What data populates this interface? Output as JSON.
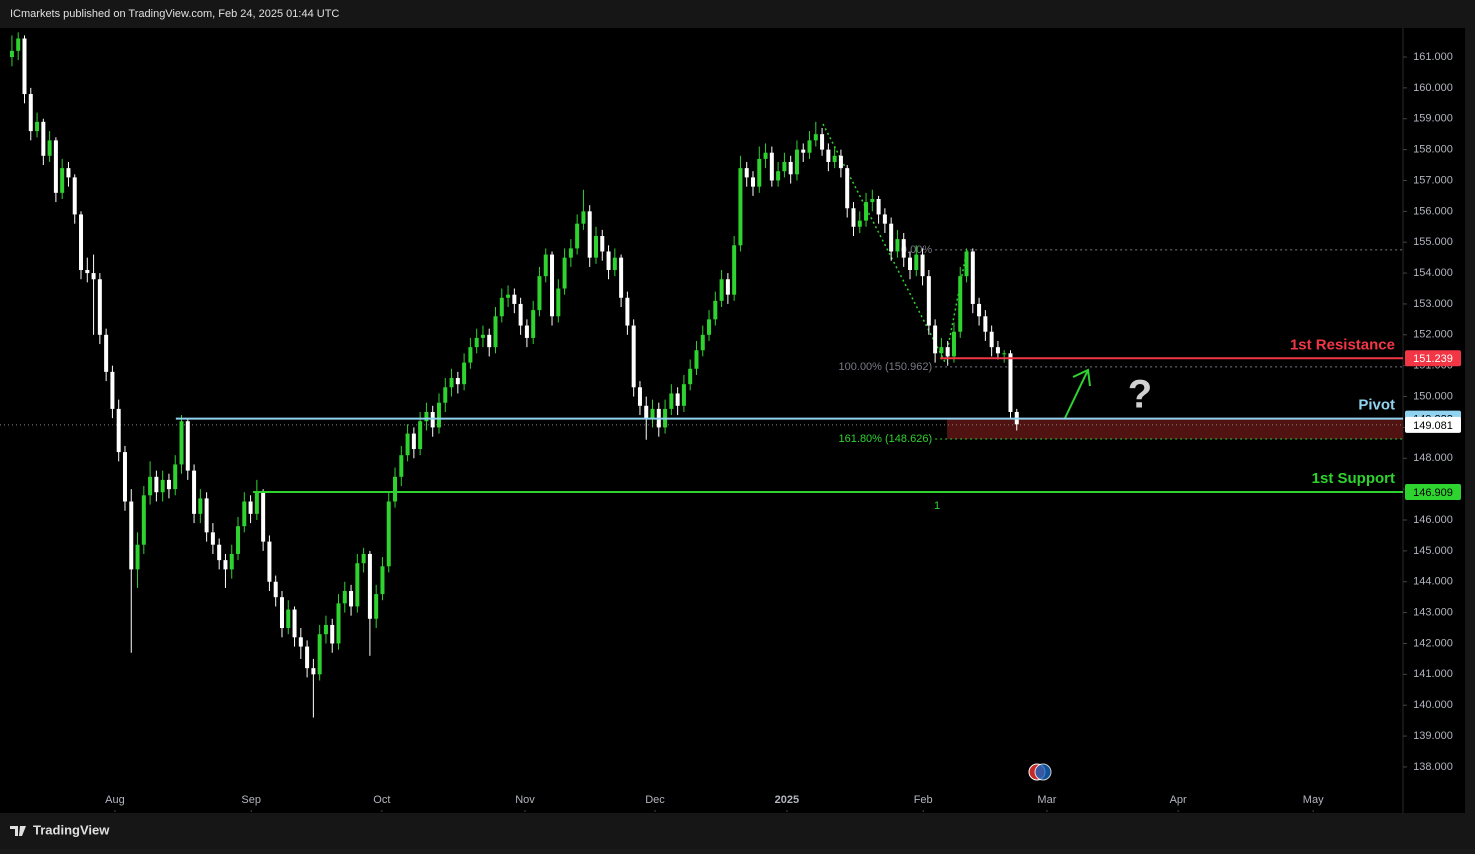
{
  "header": "ICmarkets published on TradingView.com, Feb 24, 2025 01:44 UTC",
  "brand": "TradingView",
  "chart_data": {
    "type": "candlestick",
    "up_color": "#2fd32f",
    "down_color": "#ffffff",
    "ylim": [
      136.54,
      161.94
    ],
    "yticks": [
      {
        "value": 138,
        "label": "138.000"
      },
      {
        "value": 139,
        "label": "139.000"
      },
      {
        "value": 140,
        "label": "140.000"
      },
      {
        "value": 141,
        "label": "141.000"
      },
      {
        "value": 142,
        "label": "142.000"
      },
      {
        "value": 143,
        "label": "143.000"
      },
      {
        "value": 144,
        "label": "144.000"
      },
      {
        "value": 145,
        "label": "145.000"
      },
      {
        "value": 146,
        "label": "146.000"
      },
      {
        "value": 147,
        "label": "147.000"
      },
      {
        "value": 148,
        "label": "148.000"
      },
      {
        "value": 149,
        "label": "149.000"
      },
      {
        "value": 150,
        "label": "150.000"
      },
      {
        "value": 151,
        "label": "151.000"
      },
      {
        "value": 152,
        "label": "152.000"
      },
      {
        "value": 153,
        "label": "153.000"
      },
      {
        "value": 154,
        "label": "154.000"
      },
      {
        "value": 155,
        "label": "155.000"
      },
      {
        "value": 156,
        "label": "156.000"
      },
      {
        "value": 157,
        "label": "157.000"
      },
      {
        "value": 158,
        "label": "158.000"
      },
      {
        "value": 159,
        "label": "159.000"
      },
      {
        "value": 160,
        "label": "160.000"
      },
      {
        "value": 161,
        "label": "161.000"
      }
    ],
    "xlim": [
      -1.9,
      221.5
    ],
    "xticks": [
      {
        "value": 16.4,
        "label": "Aug"
      },
      {
        "value": 38.1,
        "label": "Sep"
      },
      {
        "value": 58.9,
        "label": "Oct"
      },
      {
        "value": 81.7,
        "label": "Nov"
      },
      {
        "value": 102.4,
        "label": "Dec"
      },
      {
        "value": 123.4,
        "label": "2025"
      },
      {
        "value": 145.1,
        "label": "Feb"
      },
      {
        "value": 164.8,
        "label": "Mar"
      },
      {
        "value": 185.7,
        "label": "Apr"
      },
      {
        "value": 207.2,
        "label": "May"
      }
    ],
    "candles": [
      [
        161.0,
        161.7,
        160.7,
        161.2
      ],
      [
        161.2,
        161.8,
        160.9,
        161.6
      ],
      [
        161.6,
        161.7,
        159.5,
        159.8
      ],
      [
        159.8,
        160.0,
        158.3,
        158.6
      ],
      [
        158.6,
        159.2,
        158.4,
        158.9
      ],
      [
        158.9,
        159.0,
        157.5,
        157.8
      ],
      [
        157.8,
        158.6,
        157.6,
        158.3
      ],
      [
        158.3,
        158.4,
        156.3,
        156.6
      ],
      [
        156.6,
        157.7,
        156.4,
        157.4
      ],
      [
        157.4,
        157.6,
        156.8,
        157.1
      ],
      [
        157.1,
        157.2,
        155.6,
        155.9
      ],
      [
        155.9,
        156.0,
        153.8,
        154.1
      ],
      [
        154.1,
        154.5,
        153.7,
        154.0
      ],
      [
        154.0,
        154.6,
        152.0,
        153.8
      ],
      [
        153.8,
        154.0,
        151.7,
        152.0
      ],
      [
        152.0,
        152.2,
        150.5,
        150.8
      ],
      [
        150.8,
        151.0,
        149.3,
        149.6
      ],
      [
        149.6,
        149.9,
        147.9,
        148.2
      ],
      [
        148.2,
        148.4,
        146.3,
        146.6
      ],
      [
        146.6,
        147.0,
        141.7,
        144.4
      ],
      [
        144.4,
        145.6,
        143.8,
        145.2
      ],
      [
        145.2,
        147.1,
        144.9,
        146.8
      ],
      [
        146.8,
        147.9,
        146.5,
        147.4
      ],
      [
        147.4,
        147.6,
        146.6,
        146.9
      ],
      [
        146.9,
        147.6,
        146.6,
        147.3
      ],
      [
        147.3,
        147.5,
        146.7,
        147.0
      ],
      [
        147.0,
        148.1,
        146.8,
        147.8
      ],
      [
        147.8,
        149.4,
        147.5,
        149.2
      ],
      [
        149.2,
        149.3,
        147.3,
        147.6
      ],
      [
        147.6,
        147.8,
        145.9,
        146.2
      ],
      [
        146.2,
        147.0,
        145.9,
        146.7
      ],
      [
        146.7,
        146.9,
        145.3,
        145.6
      ],
      [
        145.6,
        145.9,
        144.9,
        145.2
      ],
      [
        145.2,
        145.4,
        144.4,
        144.7
      ],
      [
        144.7,
        144.9,
        143.8,
        144.4
      ],
      [
        144.4,
        145.2,
        144.1,
        144.9
      ],
      [
        144.9,
        146.1,
        144.7,
        145.8
      ],
      [
        145.8,
        146.9,
        145.6,
        146.6
      ],
      [
        146.6,
        146.8,
        145.9,
        146.2
      ],
      [
        146.2,
        147.3,
        146.0,
        146.9
      ],
      [
        146.9,
        147.0,
        145.0,
        145.3
      ],
      [
        145.3,
        145.5,
        143.7,
        144.0
      ],
      [
        144.0,
        144.2,
        143.2,
        143.5
      ],
      [
        143.5,
        143.7,
        142.2,
        142.5
      ],
      [
        142.5,
        143.4,
        142.3,
        143.1
      ],
      [
        143.1,
        143.2,
        141.9,
        142.2
      ],
      [
        142.2,
        142.5,
        141.5,
        141.9
      ],
      [
        141.9,
        142.1,
        140.9,
        141.2
      ],
      [
        141.2,
        141.5,
        139.6,
        141.0
      ],
      [
        141.0,
        142.6,
        140.8,
        142.3
      ],
      [
        142.3,
        142.9,
        142.0,
        142.6
      ],
      [
        142.6,
        142.8,
        141.7,
        142.0
      ],
      [
        142.0,
        143.6,
        141.8,
        143.3
      ],
      [
        143.3,
        144.0,
        143.0,
        143.7
      ],
      [
        143.7,
        143.9,
        142.9,
        143.2
      ],
      [
        143.2,
        144.9,
        143.0,
        144.6
      ],
      [
        144.6,
        145.1,
        144.3,
        144.9
      ],
      [
        144.9,
        145.0,
        141.6,
        142.8
      ],
      [
        142.8,
        143.9,
        142.5,
        143.6
      ],
      [
        143.6,
        144.8,
        143.4,
        144.5
      ],
      [
        144.5,
        146.9,
        144.3,
        146.6
      ],
      [
        146.6,
        147.7,
        146.4,
        147.4
      ],
      [
        147.4,
        148.4,
        147.1,
        148.1
      ],
      [
        148.1,
        149.1,
        147.9,
        148.8
      ],
      [
        148.8,
        149.0,
        148.0,
        148.3
      ],
      [
        148.3,
        149.5,
        148.1,
        149.2
      ],
      [
        149.2,
        149.8,
        148.9,
        149.5
      ],
      [
        149.5,
        149.7,
        148.7,
        149.0
      ],
      [
        149.0,
        150.1,
        148.8,
        149.8
      ],
      [
        149.8,
        150.6,
        149.5,
        150.3
      ],
      [
        150.3,
        150.9,
        150.0,
        150.6
      ],
      [
        150.6,
        150.8,
        150.1,
        150.4
      ],
      [
        150.4,
        151.4,
        150.2,
        151.1
      ],
      [
        151.1,
        151.9,
        150.9,
        151.6
      ],
      [
        151.6,
        152.2,
        151.4,
        151.9
      ],
      [
        151.9,
        152.3,
        151.6,
        152.0
      ],
      [
        152.0,
        152.2,
        151.3,
        151.6
      ],
      [
        151.6,
        152.9,
        151.4,
        152.6
      ],
      [
        152.6,
        153.5,
        152.4,
        153.2
      ],
      [
        153.2,
        153.6,
        152.9,
        153.3
      ],
      [
        153.3,
        153.5,
        152.7,
        153.0
      ],
      [
        153.0,
        153.2,
        152.0,
        152.3
      ],
      [
        152.3,
        152.5,
        151.6,
        151.9
      ],
      [
        151.9,
        153.1,
        151.7,
        152.8
      ],
      [
        152.8,
        154.2,
        152.6,
        153.9
      ],
      [
        153.9,
        154.8,
        153.7,
        154.6
      ],
      [
        154.6,
        154.7,
        152.3,
        152.6
      ],
      [
        152.6,
        153.8,
        152.4,
        153.5
      ],
      [
        153.5,
        154.8,
        153.3,
        154.5
      ],
      [
        154.5,
        155.1,
        154.2,
        154.8
      ],
      [
        154.8,
        155.9,
        154.6,
        155.6
      ],
      [
        155.6,
        156.7,
        155.4,
        156.0
      ],
      [
        156.0,
        156.2,
        154.2,
        154.5
      ],
      [
        154.5,
        155.5,
        154.3,
        155.2
      ],
      [
        155.2,
        155.4,
        154.4,
        154.7
      ],
      [
        154.7,
        154.9,
        153.8,
        154.1
      ],
      [
        154.1,
        154.8,
        153.9,
        154.5
      ],
      [
        154.5,
        154.6,
        152.9,
        153.2
      ],
      [
        153.2,
        153.4,
        152.0,
        152.3
      ],
      [
        152.3,
        152.5,
        150.0,
        150.3
      ],
      [
        150.3,
        150.5,
        149.4,
        149.7
      ],
      [
        149.7,
        150.0,
        148.6,
        149.3
      ],
      [
        149.3,
        149.9,
        149.0,
        149.6
      ],
      [
        149.6,
        149.8,
        148.7,
        149.0
      ],
      [
        149.0,
        149.9,
        148.8,
        149.6
      ],
      [
        149.6,
        150.4,
        149.4,
        150.1
      ],
      [
        150.1,
        150.3,
        149.4,
        149.7
      ],
      [
        149.7,
        150.7,
        149.5,
        150.4
      ],
      [
        150.4,
        151.2,
        150.2,
        150.9
      ],
      [
        150.9,
        151.8,
        150.7,
        151.5
      ],
      [
        151.5,
        152.3,
        151.3,
        152.0
      ],
      [
        152.0,
        152.8,
        151.8,
        152.5
      ],
      [
        152.5,
        153.4,
        152.3,
        153.1
      ],
      [
        153.1,
        154.1,
        152.9,
        153.8
      ],
      [
        153.8,
        154.0,
        153.0,
        153.3
      ],
      [
        153.3,
        155.2,
        153.1,
        154.9
      ],
      [
        154.9,
        157.8,
        154.7,
        157.4
      ],
      [
        157.4,
        157.6,
        156.8,
        157.1
      ],
      [
        157.1,
        157.3,
        156.5,
        156.8
      ],
      [
        156.8,
        158.1,
        156.6,
        157.7
      ],
      [
        157.7,
        158.2,
        157.4,
        157.9
      ],
      [
        157.9,
        158.1,
        156.8,
        157.0
      ],
      [
        157.0,
        157.6,
        156.8,
        157.3
      ],
      [
        157.3,
        157.9,
        157.1,
        157.6
      ],
      [
        157.6,
        157.8,
        156.9,
        157.2
      ],
      [
        157.2,
        158.3,
        157.0,
        158.0
      ],
      [
        158.0,
        158.2,
        157.6,
        157.9
      ],
      [
        157.9,
        158.6,
        157.7,
        158.3
      ],
      [
        158.3,
        158.9,
        158.1,
        158.5
      ],
      [
        158.5,
        158.7,
        157.8,
        158.0
      ],
      [
        158.0,
        158.2,
        157.3,
        157.6
      ],
      [
        157.6,
        158.1,
        157.4,
        157.8
      ],
      [
        157.8,
        158.0,
        157.1,
        157.4
      ],
      [
        157.4,
        157.5,
        155.8,
        156.1
      ],
      [
        156.1,
        156.3,
        155.2,
        155.5
      ],
      [
        155.5,
        156.0,
        155.3,
        155.7
      ],
      [
        155.7,
        156.6,
        155.5,
        156.3
      ],
      [
        156.3,
        156.7,
        156.0,
        156.4
      ],
      [
        156.4,
        156.5,
        155.6,
        155.9
      ],
      [
        155.9,
        156.1,
        155.3,
        155.6
      ],
      [
        155.6,
        155.8,
        154.4,
        154.7
      ],
      [
        154.7,
        155.4,
        154.5,
        155.1
      ],
      [
        155.1,
        155.3,
        154.2,
        154.5
      ],
      [
        154.5,
        154.7,
        153.8,
        154.1
      ],
      [
        154.1,
        154.9,
        153.9,
        154.6
      ],
      [
        154.6,
        154.8,
        153.6,
        153.9
      ],
      [
        153.9,
        154.1,
        152.0,
        152.3
      ],
      [
        152.3,
        152.5,
        151.1,
        151.4
      ],
      [
        151.4,
        151.9,
        151.2,
        151.6
      ],
      [
        151.6,
        151.8,
        151.0,
        151.3
      ],
      [
        151.3,
        152.4,
        151.1,
        152.1
      ],
      [
        152.1,
        154.2,
        151.9,
        153.9
      ],
      [
        153.9,
        154.8,
        153.7,
        154.7
      ],
      [
        154.7,
        154.8,
        152.7,
        153.0
      ],
      [
        153.0,
        153.2,
        152.3,
        152.6
      ],
      [
        152.6,
        152.8,
        151.8,
        152.1
      ],
      [
        152.1,
        152.3,
        151.3,
        151.6
      ],
      [
        151.6,
        151.8,
        151.2,
        151.4
      ],
      [
        151.4,
        151.5,
        151.1,
        151.4
      ],
      [
        151.4,
        151.5,
        149.3,
        149.5
      ],
      [
        149.5,
        149.6,
        148.9,
        149.1
      ]
    ],
    "last_price": 149.081,
    "levels": [
      {
        "name": "1st Resistance",
        "value": 151.239,
        "from": 147.8,
        "color": "#f23645",
        "text_color": "#ffffff"
      },
      {
        "name": "Pivot",
        "value": 149.283,
        "from": 26.1,
        "color": "#8fd3f0",
        "text_color": "#000000"
      },
      {
        "name": "1st Support",
        "value": 146.909,
        "from": 38.4,
        "color": "#2fd32f",
        "text_color": "#000000"
      }
    ],
    "zone": {
      "from": 148.9,
      "bottom": 148.626,
      "top": 149.283,
      "color": "#5a1414"
    },
    "fib": [
      {
        "label": "0.00%",
        "value": 154.75,
        "color": "#787b86"
      },
      {
        "label": "100.00% (150.962)",
        "value": 150.962,
        "color": "#787b86"
      },
      {
        "label": "161.80% (148.626)",
        "value": 148.626,
        "color": "#2fd32f"
      }
    ],
    "fib_from": 147.0,
    "fib_marker": "1",
    "annotation": "?"
  }
}
